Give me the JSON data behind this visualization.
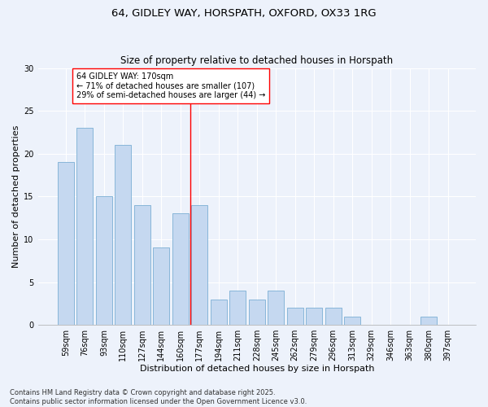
{
  "title": "64, GIDLEY WAY, HORSPATH, OXFORD, OX33 1RG",
  "subtitle": "Size of property relative to detached houses in Horspath",
  "xlabel": "Distribution of detached houses by size in Horspath",
  "ylabel": "Number of detached properties",
  "categories": [
    "59sqm",
    "76sqm",
    "93sqm",
    "110sqm",
    "127sqm",
    "144sqm",
    "160sqm",
    "177sqm",
    "194sqm",
    "211sqm",
    "228sqm",
    "245sqm",
    "262sqm",
    "279sqm",
    "296sqm",
    "313sqm",
    "329sqm",
    "346sqm",
    "363sqm",
    "380sqm",
    "397sqm"
  ],
  "values": [
    19,
    23,
    15,
    21,
    14,
    9,
    13,
    14,
    3,
    4,
    3,
    4,
    2,
    2,
    2,
    1,
    0,
    0,
    0,
    1,
    0
  ],
  "bar_color": "#c5d8f0",
  "bar_edge_color": "#7bafd4",
  "vline_color": "red",
  "vline_x_index": 6.5,
  "annotation_text": "64 GIDLEY WAY: 170sqm\n← 71% of detached houses are smaller (107)\n29% of semi-detached houses are larger (44) →",
  "annotation_box_color": "white",
  "annotation_box_edge_color": "red",
  "ylim": [
    0,
    30
  ],
  "yticks": [
    0,
    5,
    10,
    15,
    20,
    25,
    30
  ],
  "background_color": "#edf2fb",
  "grid_color": "white",
  "footnote": "Contains HM Land Registry data © Crown copyright and database right 2025.\nContains public sector information licensed under the Open Government Licence v3.0.",
  "title_fontsize": 9.5,
  "subtitle_fontsize": 8.5,
  "xlabel_fontsize": 8,
  "ylabel_fontsize": 8,
  "tick_fontsize": 7,
  "annot_fontsize": 7,
  "footnote_fontsize": 6
}
